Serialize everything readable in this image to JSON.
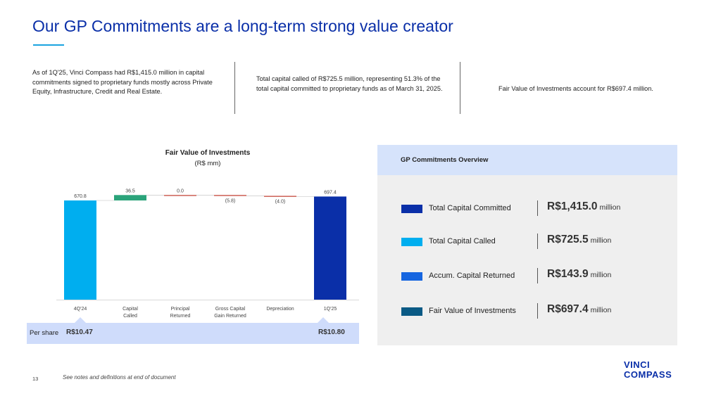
{
  "page": {
    "title": "Our GP Commitments are a long-term strong value creator",
    "page_number": "13",
    "footnote": "See notes and definitions at end of document",
    "logo_line1": "VINCI",
    "logo_line2": "COMPASS"
  },
  "summaries": [
    "As of 1Q'25, Vinci Compass had R$1,415.0 million in capital commitments signed to proprietary funds mostly across Private Equity, Infrastructure, Credit and Real Estate.",
    "Total capital called of R$725.5 million, representing 51.3% of the total capital committed to proprietary funds as of March 31, 2025.",
    "Fair Value of Investments account for R$697.4 million."
  ],
  "chart": {
    "title": "Fair Value of Investments",
    "subtitle": "(R$ mm)"
  },
  "chart_data": {
    "type": "waterfall",
    "title": "Fair Value of Investments",
    "subtitle": "(R$ mm)",
    "unit": "R$ mm",
    "steps": [
      {
        "label": "4Q'24",
        "value": 670.8,
        "kind": "total",
        "data_label": "670.8",
        "color": "#00aeef"
      },
      {
        "label": "Capital Called",
        "value": 36.5,
        "kind": "delta",
        "data_label": "36.5",
        "color": "#2aa37a"
      },
      {
        "label": "Principal Returned",
        "value": 0.0,
        "kind": "delta",
        "data_label": "0.0",
        "color": "#c0392b"
      },
      {
        "label": "Gross Capital Gain Returned",
        "value": -5.8,
        "kind": "delta",
        "data_label": "(5.8)",
        "color": "#c0392b"
      },
      {
        "label": "Depreciation",
        "value": -4.0,
        "kind": "delta",
        "data_label": "(4.0)",
        "color": "#c0392b"
      },
      {
        "label": "1Q'25",
        "value": 697.4,
        "kind": "total",
        "data_label": "697.4",
        "color": "#0a2fa8"
      }
    ],
    "per_share_label": "Per share",
    "per_share": {
      "4Q'24": "R$10.47",
      "1Q'25": "R$10.80"
    }
  },
  "panel": {
    "title": "GP Commitments Overview",
    "rows": [
      {
        "label": "Total Capital Committed",
        "value": "R$1,415.0",
        "unit": "million",
        "color": "#0a2fa8"
      },
      {
        "label": "Total Capital Called",
        "value": "R$725.5",
        "unit": "million",
        "color": "#00aeef"
      },
      {
        "label": "Accum. Capital Returned",
        "value": "R$143.9",
        "unit": "million",
        "color": "#1565e0"
      },
      {
        "label": "Fair Value of Investments",
        "value": "R$697.4",
        "unit": "million",
        "color": "#0a5a85"
      }
    ]
  }
}
